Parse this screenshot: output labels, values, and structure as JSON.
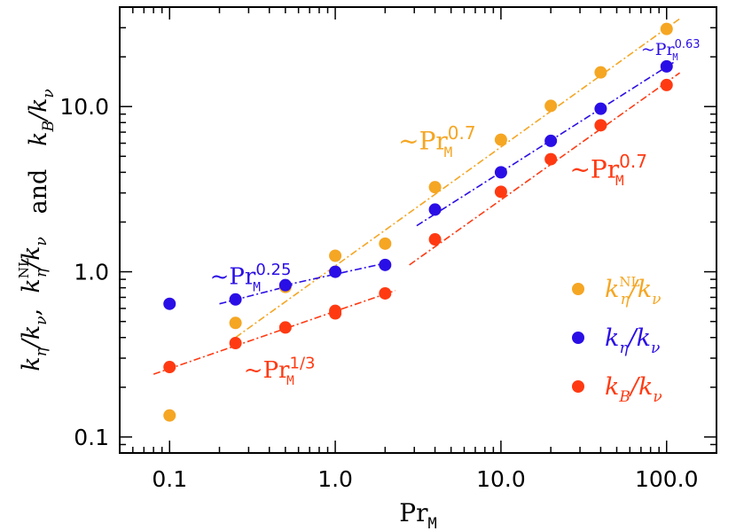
{
  "chart_data": {
    "type": "scatter",
    "xscale": "log",
    "yscale": "log",
    "xlim": [
      0.05,
      200
    ],
    "ylim": [
      0.08,
      40
    ],
    "xticks": [
      {
        "value": 0.1,
        "label": "0.1"
      },
      {
        "value": 1,
        "label": "1.0"
      },
      {
        "value": 10,
        "label": "10.0"
      },
      {
        "value": 100,
        "label": "100.0"
      }
    ],
    "yticks": [
      {
        "value": 0.1,
        "label": "0.1"
      },
      {
        "value": 1,
        "label": "1.0"
      },
      {
        "value": 10,
        "label": "10.0"
      }
    ],
    "xlabel": {
      "base": "Pr",
      "sub": "M"
    },
    "ylabel": {
      "part1": {
        "k": "k",
        "sub": "η",
        "den": "/k",
        "densub": "ν",
        "after": ","
      },
      "part2": {
        "k": "k",
        "sup": "NL",
        "sub": "η",
        "den": "/k",
        "densub": "ν"
      },
      "and": "and",
      "part3": {
        "k": "k",
        "sub": "B",
        "den": "/k",
        "densub": "ν"
      }
    },
    "grid": false,
    "legend_position": "bottom-right",
    "series": [
      {
        "name_parts": {
          "k": "k",
          "sub": "η",
          "sup": "NL",
          "den": "/k",
          "densub": "ν"
        },
        "color": "#f5a623",
        "points": [
          [
            0.1,
            0.135
          ],
          [
            0.25,
            0.49
          ],
          [
            0.5,
            0.81
          ],
          [
            1,
            1.25
          ],
          [
            2,
            1.48
          ],
          [
            4,
            3.25
          ],
          [
            10,
            6.3
          ],
          [
            20,
            10.1
          ],
          [
            40,
            16.1
          ],
          [
            100,
            29.5
          ]
        ]
      },
      {
        "name_parts": {
          "k": "k",
          "sub": "η",
          "den": "/k",
          "densub": "ν"
        },
        "color": "#2a0ee6",
        "points": [
          [
            0.1,
            0.64
          ],
          [
            0.25,
            0.68
          ],
          [
            0.5,
            0.83
          ],
          [
            1,
            1.0
          ],
          [
            2,
            1.1
          ],
          [
            4,
            2.38
          ],
          [
            10,
            4.0
          ],
          [
            20,
            6.2
          ],
          [
            40,
            9.7
          ],
          [
            100,
            17.5
          ]
        ]
      },
      {
        "name_parts": {
          "k": "k",
          "sub": "B",
          "den": "/k",
          "densub": "ν"
        },
        "color": "#ff3a12",
        "points": [
          [
            0.1,
            0.265
          ],
          [
            0.25,
            0.37
          ],
          [
            0.5,
            0.46
          ],
          [
            1,
            0.56
          ],
          [
            1,
            0.58
          ],
          [
            2,
            0.74
          ],
          [
            4,
            1.57
          ],
          [
            10,
            3.05
          ],
          [
            20,
            4.8
          ],
          [
            40,
            7.7
          ],
          [
            100,
            13.5
          ]
        ]
      }
    ],
    "fits": [
      {
        "color": "#f5a623",
        "x": [
          0.25,
          120
        ],
        "y": [
          0.4,
          34
        ]
      },
      {
        "color": "#2a0ee6",
        "x": [
          0.2,
          0.55
        ],
        "y": [
          0.64,
          0.83
        ]
      },
      {
        "color": "#2a0ee6",
        "x": [
          0.5,
          2.2
        ],
        "y": [
          0.83,
          1.15
        ]
      },
      {
        "color": "#2a0ee6",
        "x": [
          3.1,
          110
        ],
        "y": [
          1.9,
          18.5
        ]
      },
      {
        "color": "#ff3a12",
        "x": [
          0.08,
          2.3
        ],
        "y": [
          0.24,
          0.77
        ]
      },
      {
        "color": "#ff3a12",
        "x": [
          2.8,
          120
        ],
        "y": [
          1.1,
          16
        ]
      }
    ],
    "annotations": [
      {
        "base": "~Pr",
        "sub": "M",
        "sup": "0.7",
        "color": "#f5a623",
        "x": 2.4,
        "y": 5.5,
        "size": 28,
        "supsize": 20
      },
      {
        "base": "~Pr",
        "sub": "M",
        "sup": "0.63",
        "color": "#2a0ee6",
        "x": 70,
        "y": 20.5,
        "size": 19,
        "supsize": 13
      },
      {
        "base": "~Pr",
        "sub": "M",
        "sup": "0.7",
        "color": "#ff3a12",
        "x": 26,
        "y": 3.7,
        "size": 28,
        "supsize": 20
      },
      {
        "base": "~Pr",
        "sub": "M",
        "sup": "0.25",
        "color": "#2a0ee6",
        "x": 0.175,
        "y": 0.84,
        "size": 26,
        "supsize": 18
      },
      {
        "base": "~Pr",
        "sub": "M",
        "sup": "1/3",
        "color": "#ff3a12",
        "x": 0.28,
        "y": 0.228,
        "size": 26,
        "supsize": 18
      }
    ]
  }
}
